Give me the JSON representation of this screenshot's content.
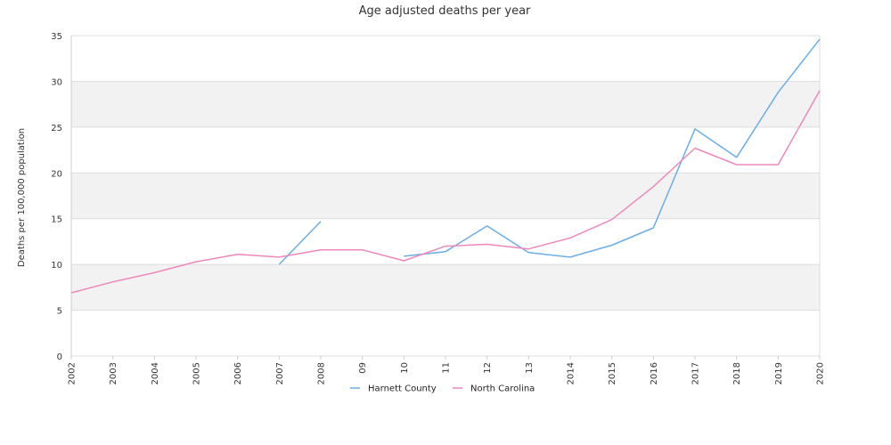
{
  "chart_data": {
    "type": "line",
    "title": "Age adjusted deaths per year",
    "xlabel": "",
    "ylabel": "Deaths per 100,000 population",
    "categories": [
      "2002",
      "2003",
      "2004",
      "2005",
      "2006",
      "2007",
      "2008",
      "09",
      "10",
      "11",
      "12",
      "13",
      "2014",
      "2015",
      "2016",
      "2017",
      "2018",
      "2019",
      "2020"
    ],
    "ylim": [
      0,
      35
    ],
    "yticks": [
      "0",
      "5",
      "10",
      "15",
      "20",
      "25",
      "30",
      "35"
    ],
    "grid": true,
    "legend_position": "bottom",
    "series": [
      {
        "name": "Harnett County",
        "color": "#6aaee8",
        "values": [
          null,
          null,
          null,
          null,
          null,
          10.0,
          14.7,
          null,
          10.9,
          11.4,
          14.2,
          11.3,
          10.8,
          12.1,
          14.0,
          24.8,
          21.7,
          28.8,
          34.6
        ]
      },
      {
        "name": "North Carolina",
        "color": "#ee88bb",
        "values": [
          6.9,
          8.1,
          9.1,
          10.3,
          11.1,
          10.8,
          11.6,
          11.6,
          10.4,
          12.0,
          12.2,
          11.7,
          12.9,
          14.9,
          18.5,
          22.7,
          20.9,
          20.9,
          29.0
        ]
      }
    ]
  }
}
